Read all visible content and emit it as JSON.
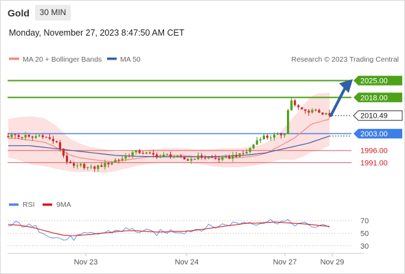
{
  "header": {
    "symbol": "Gold",
    "timeframe": "30 MIN",
    "datetime": "Monday, November 27, 2023 8:47:50 AM CET"
  },
  "legend": {
    "ma20": "MA 20 + Bollinger Bands",
    "ma50": "MA 50",
    "rsi": "RSI",
    "rsi_ma": "9MA",
    "credit": "Research © 2023 Trading Central"
  },
  "colors": {
    "green": "#4ea21a",
    "blue": "#3d7ee8",
    "red": "#e06060",
    "ma20": "#f08a8a",
    "band": "#fcd6d6",
    "ma50": "#3c5fa0",
    "bull": "#4ea21a",
    "bear": "#cc2a2a",
    "arrow": "#2f5fa5",
    "last": "#333333",
    "rsi": "#5a86e0",
    "rsi_ma": "#d22020"
  },
  "chart_data": {
    "type": "candlestick",
    "title": "Gold",
    "timeframe": "30 MIN",
    "x_ticks": [
      "Nov 23",
      "Nov 24",
      "Nov 27",
      "Nov 29"
    ],
    "y_range": [
      1984,
      2030
    ],
    "levels": [
      {
        "value": 2025.0,
        "label": "2025.00",
        "kind": "resistance"
      },
      {
        "value": 2018.0,
        "label": "2018.00",
        "kind": "resistance"
      },
      {
        "value": 2003.0,
        "label": "2003.00",
        "kind": "pivot"
      },
      {
        "value": 1996.0,
        "label": "1996.00",
        "kind": "support"
      },
      {
        "value": 1991.0,
        "label": "1991.00",
        "kind": "support"
      }
    ],
    "last_price": {
      "value": 2010.49,
      "label": "2010.49"
    },
    "projection": {
      "from": 2010.49,
      "to": 2025.0
    },
    "price_anchors": [
      2002,
      2002.5,
      2001.5,
      2002,
      2001,
      2002,
      2002.5,
      2001,
      2000,
      1998,
      1993,
      1990,
      1989,
      1990,
      1989,
      1988.5,
      1989.5,
      1990,
      1991,
      1992,
      1992.5,
      1994,
      1995,
      1995.5,
      1995,
      1994.5,
      1994,
      1993.5,
      1994,
      1994,
      1993,
      1992.5,
      1992,
      1993,
      1993.5,
      1993,
      1993,
      1992.5,
      1992.5,
      1993,
      1994,
      1994,
      1995,
      1997,
      2000,
      2002,
      2001.5,
      2002,
      2002.5,
      2003,
      2018,
      2014,
      2013,
      2012,
      2013,
      2012.5,
      2011,
      2010.5
    ],
    "ma20_anchors": [
      2001,
      2001,
      2000.5,
      2000,
      1999.5,
      1998,
      1996,
      1994,
      1993,
      1992.5,
      1992,
      1991.5,
      1991.5,
      1992,
      1992.5,
      1993,
      1993.5,
      1993.8,
      1994,
      1994,
      1993.8,
      1993.5,
      1993.3,
      1993,
      1993,
      1993,
      1993,
      1993.5,
      1994,
      1995,
      1997,
      1999,
      2001,
      2004,
      2007,
      2008,
      2009
    ],
    "ma50_anchors": [
      1998,
      1998,
      1998,
      1997.5,
      1997,
      1996.5,
      1996,
      1995.5,
      1995,
      1994.5,
      1994,
      1993.8,
      1993.6,
      1993.5,
      1993.4,
      1993.4,
      1993.4,
      1993.4,
      1993.4,
      1993.5,
      1993.6,
      1993.8,
      1994,
      1994.5,
      1995,
      1996,
      1997,
      1998,
      1999,
      2000.5,
      2002
    ],
    "band_width_anchors": [
      8,
      9,
      10,
      10,
      9,
      7,
      6,
      5,
      5,
      4,
      3.5,
      3,
      3,
      3,
      3,
      3,
      3,
      3.5,
      4,
      4,
      4,
      4,
      4.5,
      6,
      9,
      11,
      12,
      11
    ],
    "rsi": {
      "levels": [
        70,
        50,
        30
      ],
      "level_labels": [
        "70",
        "50",
        "30"
      ],
      "range": [
        20,
        80
      ],
      "rsi_anchors": [
        60,
        66,
        62,
        58,
        52,
        44,
        40,
        42,
        46,
        48,
        50,
        52,
        55,
        56,
        54,
        52,
        50,
        52,
        54,
        53,
        55,
        58,
        60,
        62,
        65,
        66,
        68,
        67,
        68,
        70,
        68,
        66,
        64,
        62,
        60,
        62
      ],
      "ma_anchors": [
        64,
        63,
        61,
        58,
        54,
        50,
        47,
        46,
        47,
        48,
        50,
        51,
        53,
        54,
        54,
        53,
        52,
        52,
        53,
        53,
        54,
        56,
        58,
        60,
        62,
        64,
        66,
        66,
        67,
        68,
        67,
        66,
        65,
        64,
        62,
        61
      ]
    }
  }
}
